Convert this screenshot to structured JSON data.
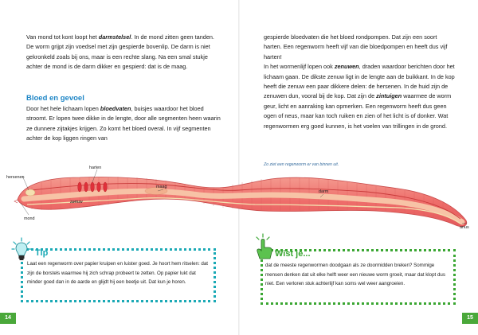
{
  "left": {
    "para1": {
      "t1": "Van mond tot kont loopt het ",
      "b1": "darmstelsel",
      "t2": ". In de mond zitten geen tanden. De worm grijpt zijn voedsel met zijn gespierde bovenlip. De darm is niet gekronkeld zoals bij ons, maar is een rechte slang. Na een smal stukje achter de mond is de darm dikker en gespierd: dat is de maag."
    },
    "heading": "Bloed en gevoel",
    "para2": {
      "t1": "Door het hele lichaam lopen ",
      "b1": "bloedvaten",
      "t2": ", buisjes waardoor het bloed stroomt. Er lopen twee dikke in de lengte, door alle segmenten heen waarin ze dunnere zijtakjes krijgen. Zo komt het bloed overal. In vijf segmenten achter de kop liggen ringen van"
    },
    "page_number": "14"
  },
  "right": {
    "para": {
      "t1": "gespierde bloedvaten die het bloed rondpompen. Dat zijn een soort harten. Een regenworm heeft vijf van die bloedpompen en heeft dus vijf harten!",
      "t2": "In het wormenlijf lopen ook ",
      "b1": "zenuwen",
      "t3": ", draden waardoor berichten door het lichaam gaan. De dikste zenuw ligt in de lengte aan de buikkant. In de kop heeft die zenuw een paar dikkere delen: de hersenen. In de huid zijn de zenuwen dun, vooral bij de kop. Dat zijn de ",
      "b2": "zintuigen",
      "t4": " waarmee de worm geur, licht en aanraking kan opmerken. Een regenworm heeft dus geen ogen of neus, maar kan toch ruiken en zien of het licht is of donker. Wat regenwormen erg goed kunnen, is het voelen van trillingen in de grond."
    },
    "caption": "Zo ziet een regenworm er van binnen uit.",
    "page_number": "15"
  },
  "labels": {
    "hersenen": "hersenen",
    "harten": "harten",
    "maag": "maag",
    "mond": "mond",
    "zenuw": "zenuw",
    "darm": "darm",
    "anus": "anus"
  },
  "tip": {
    "title": "Tip",
    "text": "Laat een regenworm over papier kruipen en luister goed. Je hoort hem ritselen: dat zijn de borstels waarmee hij zich schrap probeert te zetten. Op papier lukt dat minder goed dan in de aarde en glijdt hij een beetje uit. Dat kun je horen."
  },
  "wist": {
    "title": "Wist je...",
    "text": "dat de meeste regenwormen doodgaan als ze doormidden breken? Sommige mensen denken dat uit elke helft weer een nieuwe worm groeit, maar dat klopt dus niet. Een verloren stuk achterlijf kan soms wel weer aangroeien."
  },
  "colors": {
    "heading": "#1f86c6",
    "tip_border": "#1aa9b5",
    "wist_border": "#3aa632",
    "worm_body": "#ee6d6a",
    "page_number_bg": "#4aa83a"
  }
}
